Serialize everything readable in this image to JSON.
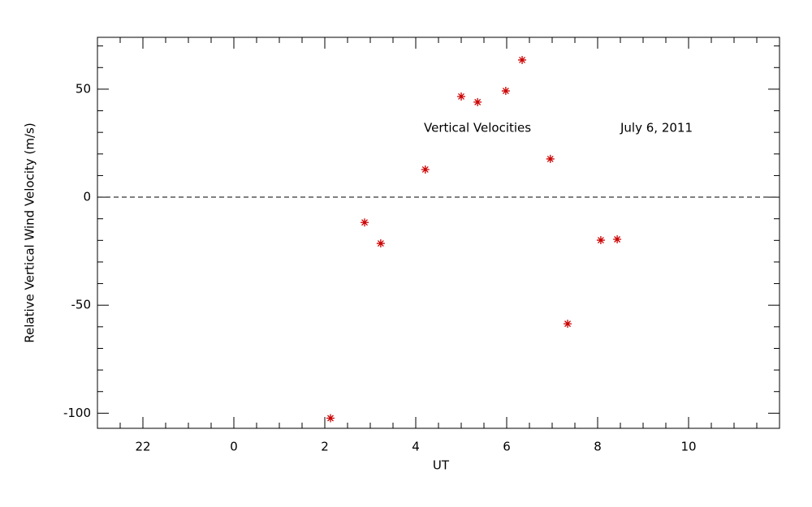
{
  "chart_data": {
    "type": "scatter",
    "xlabel": "UT",
    "ylabel": "Relative Vertical Wind Velocity (m/s)",
    "annotations": [
      "Vertical Velocities",
      "July 6, 2011"
    ],
    "color": "#cc0000",
    "marker": "asterisk",
    "x": [
      2.125,
      2.875,
      3.23,
      4.21,
      5.0,
      5.36,
      5.98,
      6.34,
      6.96,
      7.34,
      8.07,
      8.43
    ],
    "values": [
      -102.3,
      -11.7,
      -21.4,
      12.8,
      46.6,
      44,
      49.2,
      63.5,
      17.7,
      -58.6,
      -19.9,
      -19.5
    ],
    "xlim": [
      -3,
      12
    ],
    "ylim": [
      -107,
      74
    ],
    "xticks": [
      {
        "value": -2,
        "label": "22"
      },
      0,
      2,
      4,
      6,
      8,
      10
    ],
    "yticks": [
      -100,
      -50,
      0,
      50
    ],
    "xminorticks": [
      -2.5,
      -1.5,
      -1,
      -0.5,
      0.5,
      1,
      1.5,
      2.5,
      3,
      3.5,
      4.5,
      5,
      5.5,
      6.5,
      7,
      7.5,
      8.5,
      9,
      9.5,
      10.5,
      11,
      11.5
    ],
    "yminorticks": [
      -90,
      -80,
      -70,
      -60,
      -40,
      -30,
      -20,
      -10,
      10,
      20,
      30,
      40,
      60,
      70
    ],
    "zero_line": "dashed"
  }
}
